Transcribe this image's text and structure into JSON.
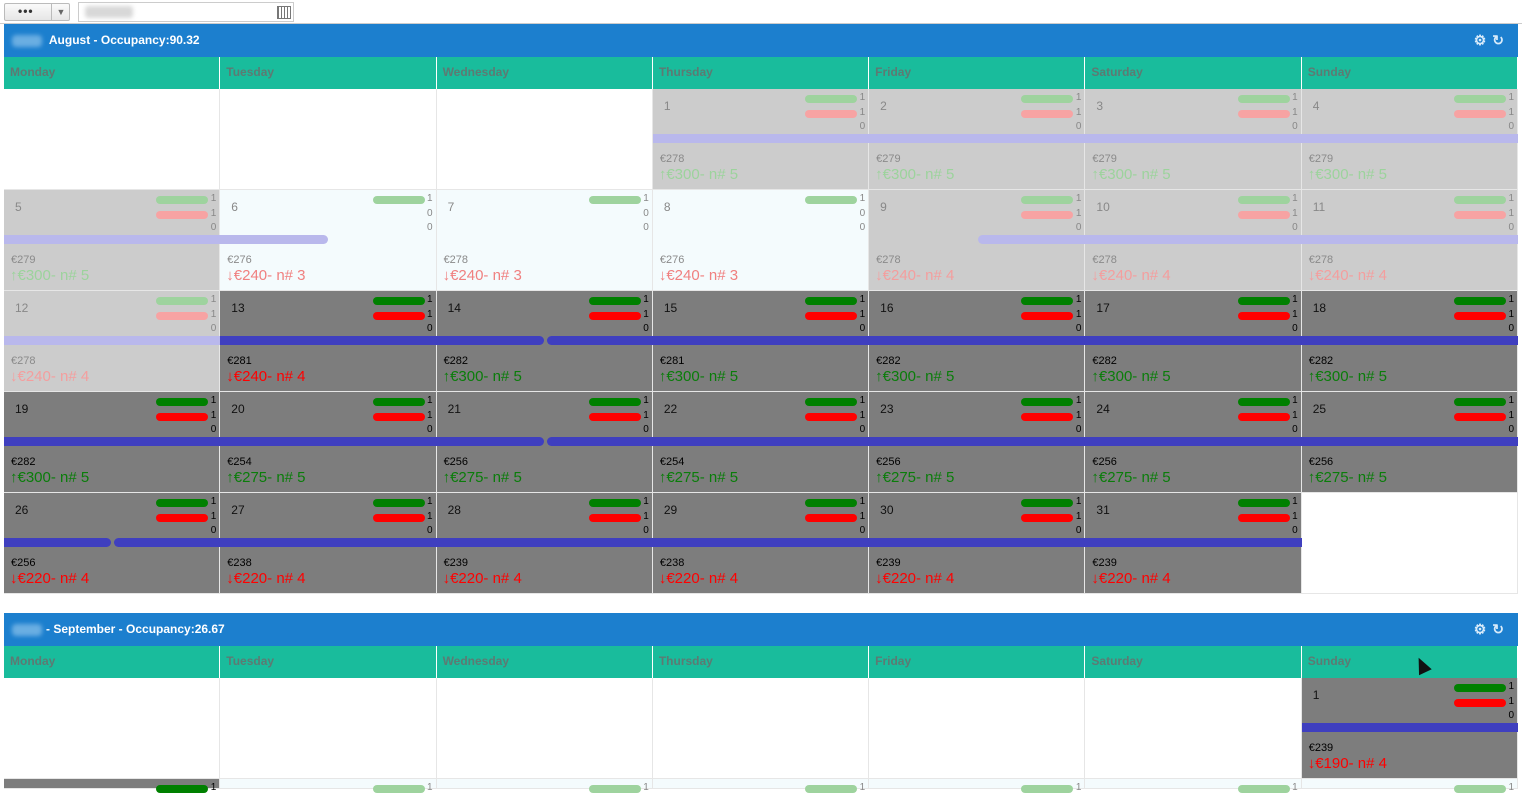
{
  "toolbar": {
    "menu_label": "•••",
    "menu_caret": "▼"
  },
  "months": [
    {
      "title": " August - Occupancy:90.32",
      "days_header": [
        "Monday",
        "Tuesday",
        "Wednesday",
        "Thursday",
        "Friday",
        "Saturday",
        "Sunday"
      ],
      "tools": [
        "gear-icon",
        "refresh-icon"
      ],
      "cells": [
        {
          "empty": true
        },
        {
          "empty": true
        },
        {
          "empty": true
        },
        {
          "day": "1",
          "style": "past",
          "c": [
            "1",
            "1",
            "0"
          ],
          "price": "€278",
          "rate": "↑€300- n# 5",
          "dir": "up",
          "bar": "full"
        },
        {
          "day": "2",
          "style": "past",
          "c": [
            "1",
            "1",
            "0"
          ],
          "price": "€279",
          "rate": "↑€300- n# 5",
          "dir": "up",
          "bar": "full"
        },
        {
          "day": "3",
          "style": "past",
          "c": [
            "1",
            "1",
            "0"
          ],
          "price": "€279",
          "rate": "↑€300- n# 5",
          "dir": "up",
          "bar": "full"
        },
        {
          "day": "4",
          "style": "past",
          "c": [
            "1",
            "1",
            "0"
          ],
          "price": "€279",
          "rate": "↑€300- n# 5",
          "dir": "up",
          "bar": "full"
        },
        {
          "day": "5",
          "style": "past",
          "c": [
            "1",
            "1",
            "0"
          ],
          "price": "€279",
          "rate": "↑€300- n# 5",
          "dir": "up",
          "bar": "full"
        },
        {
          "day": "6",
          "style": "light",
          "c": [
            "1",
            "0",
            "0"
          ],
          "price": "€276",
          "rate": "↓€240- n# 3",
          "dir": "down",
          "bar": "eend",
          "nored": true
        },
        {
          "day": "7",
          "style": "light",
          "c": [
            "1",
            "0",
            "0"
          ],
          "price": "€278",
          "rate": "↓€240- n# 3",
          "dir": "down",
          "bar": "none",
          "nored": true
        },
        {
          "day": "8",
          "style": "light",
          "c": [
            "1",
            "0",
            "0"
          ],
          "price": "€276",
          "rate": "↓€240- n# 3",
          "dir": "down",
          "bar": "none",
          "nored": true
        },
        {
          "day": "9",
          "style": "past",
          "c": [
            "1",
            "1",
            "0"
          ],
          "price": "€278",
          "rate": "↓€240- n# 4",
          "dir": "down",
          "bar": "sstart"
        },
        {
          "day": "10",
          "style": "past",
          "c": [
            "1",
            "1",
            "0"
          ],
          "price": "€278",
          "rate": "↓€240- n# 4",
          "dir": "down",
          "bar": "full"
        },
        {
          "day": "11",
          "style": "past",
          "c": [
            "1",
            "1",
            "0"
          ],
          "price": "€278",
          "rate": "↓€240- n# 4",
          "dir": "down",
          "bar": "full"
        },
        {
          "day": "12",
          "style": "past",
          "c": [
            "1",
            "1",
            "0"
          ],
          "price": "€278",
          "rate": "↓€240- n# 4",
          "dir": "down",
          "bar": "full"
        },
        {
          "day": "13",
          "style": "dark",
          "c": [
            "1",
            "1",
            "0"
          ],
          "price": "€281",
          "rate": "↓€240- n# 4",
          "dir": "down",
          "bar": "full"
        },
        {
          "day": "14",
          "style": "dark",
          "c": [
            "1",
            "1",
            "0"
          ],
          "price": "€282",
          "rate": "↑€300- n# 5",
          "dir": "up",
          "bar": "split"
        },
        {
          "day": "15",
          "style": "dark",
          "c": [
            "1",
            "1",
            "0"
          ],
          "price": "€281",
          "rate": "↑€300- n# 5",
          "dir": "up",
          "bar": "full"
        },
        {
          "day": "16",
          "style": "dark",
          "c": [
            "1",
            "1",
            "0"
          ],
          "price": "€282",
          "rate": "↑€300- n# 5",
          "dir": "up",
          "bar": "full"
        },
        {
          "day": "17",
          "style": "dark",
          "c": [
            "1",
            "1",
            "0"
          ],
          "price": "€282",
          "rate": "↑€300- n# 5",
          "dir": "up",
          "bar": "full"
        },
        {
          "day": "18",
          "style": "dark",
          "c": [
            "1",
            "1",
            "0"
          ],
          "price": "€282",
          "rate": "↑€300- n# 5",
          "dir": "up",
          "bar": "full"
        },
        {
          "day": "19",
          "style": "dark",
          "c": [
            "1",
            "1",
            "0"
          ],
          "price": "€282",
          "rate": "↑€300- n# 5",
          "dir": "up",
          "bar": "full"
        },
        {
          "day": "20",
          "style": "dark",
          "c": [
            "1",
            "1",
            "0"
          ],
          "price": "€254",
          "rate": "↑€275- n# 5",
          "dir": "up",
          "bar": "full"
        },
        {
          "day": "21",
          "style": "dark",
          "c": [
            "1",
            "1",
            "0"
          ],
          "price": "€256",
          "rate": "↑€275- n# 5",
          "dir": "up",
          "bar": "split"
        },
        {
          "day": "22",
          "style": "dark",
          "c": [
            "1",
            "1",
            "0"
          ],
          "price": "€254",
          "rate": "↑€275- n# 5",
          "dir": "up",
          "bar": "full"
        },
        {
          "day": "23",
          "style": "dark",
          "c": [
            "1",
            "1",
            "0"
          ],
          "price": "€256",
          "rate": "↑€275- n# 5",
          "dir": "up",
          "bar": "full"
        },
        {
          "day": "24",
          "style": "dark",
          "c": [
            "1",
            "1",
            "0"
          ],
          "price": "€256",
          "rate": "↑€275- n# 5",
          "dir": "up",
          "bar": "full"
        },
        {
          "day": "25",
          "style": "dark",
          "c": [
            "1",
            "1",
            "0"
          ],
          "price": "€256",
          "rate": "↑€275- n# 5",
          "dir": "up",
          "bar": "full"
        },
        {
          "day": "26",
          "style": "dark",
          "c": [
            "1",
            "1",
            "0"
          ],
          "price": "€256",
          "rate": "↓€220- n# 4",
          "dir": "down",
          "bar": "split"
        },
        {
          "day": "27",
          "style": "dark",
          "c": [
            "1",
            "1",
            "0"
          ],
          "price": "€238",
          "rate": "↓€220- n# 4",
          "dir": "down",
          "bar": "full"
        },
        {
          "day": "28",
          "style": "dark",
          "c": [
            "1",
            "1",
            "0"
          ],
          "price": "€239",
          "rate": "↓€220- n# 4",
          "dir": "down",
          "bar": "full"
        },
        {
          "day": "29",
          "style": "dark",
          "c": [
            "1",
            "1",
            "0"
          ],
          "price": "€238",
          "rate": "↓€220- n# 4",
          "dir": "down",
          "bar": "full"
        },
        {
          "day": "30",
          "style": "dark",
          "c": [
            "1",
            "1",
            "0"
          ],
          "price": "€239",
          "rate": "↓€220- n# 4",
          "dir": "down",
          "bar": "full"
        },
        {
          "day": "31",
          "style": "dark",
          "c": [
            "1",
            "1",
            "0"
          ],
          "price": "€239",
          "rate": "↓€220- n# 4",
          "dir": "down",
          "bar": "full"
        },
        {
          "empty": true
        }
      ]
    },
    {
      "title": "- September - Occupancy:26.67",
      "days_header": [
        "Monday",
        "Tuesday",
        "Wednesday",
        "Thursday",
        "Friday",
        "Saturday",
        "Sunday"
      ],
      "tools": [
        "gear-icon",
        "refresh-icon"
      ],
      "cells": [
        {
          "empty": true
        },
        {
          "empty": true
        },
        {
          "empty": true
        },
        {
          "empty": true
        },
        {
          "empty": true
        },
        {
          "empty": true
        },
        {
          "day": "1",
          "style": "dark",
          "c": [
            "1",
            "1",
            "0"
          ],
          "price": "€239",
          "rate": "↓€190- n# 4",
          "dir": "down",
          "bar": "full"
        },
        {
          "day": "",
          "style": "dark",
          "c": [
            "1",
            "",
            ""
          ],
          "price": "",
          "rate": "",
          "dir": "up",
          "bar": "none",
          "partial": true
        },
        {
          "day": "",
          "style": "light",
          "c": [
            "1",
            "",
            ""
          ],
          "price": "",
          "rate": "",
          "dir": "up",
          "bar": "none",
          "partial": true
        },
        {
          "day": "",
          "style": "light",
          "c": [
            "1",
            "",
            ""
          ],
          "price": "",
          "rate": "",
          "dir": "up",
          "bar": "none",
          "partial": true
        },
        {
          "day": "",
          "style": "light",
          "c": [
            "1",
            "",
            ""
          ],
          "price": "",
          "rate": "",
          "dir": "up",
          "bar": "none",
          "partial": true
        },
        {
          "day": "",
          "style": "light",
          "c": [
            "1",
            "",
            ""
          ],
          "price": "",
          "rate": "",
          "dir": "up",
          "bar": "none",
          "partial": true
        },
        {
          "day": "",
          "style": "light",
          "c": [
            "1",
            "",
            ""
          ],
          "price": "",
          "rate": "",
          "dir": "up",
          "bar": "none",
          "partial": true
        },
        {
          "day": "",
          "style": "light",
          "c": [
            "1",
            "",
            ""
          ],
          "price": "",
          "rate": "",
          "dir": "up",
          "bar": "none",
          "partial": true
        }
      ]
    }
  ]
}
